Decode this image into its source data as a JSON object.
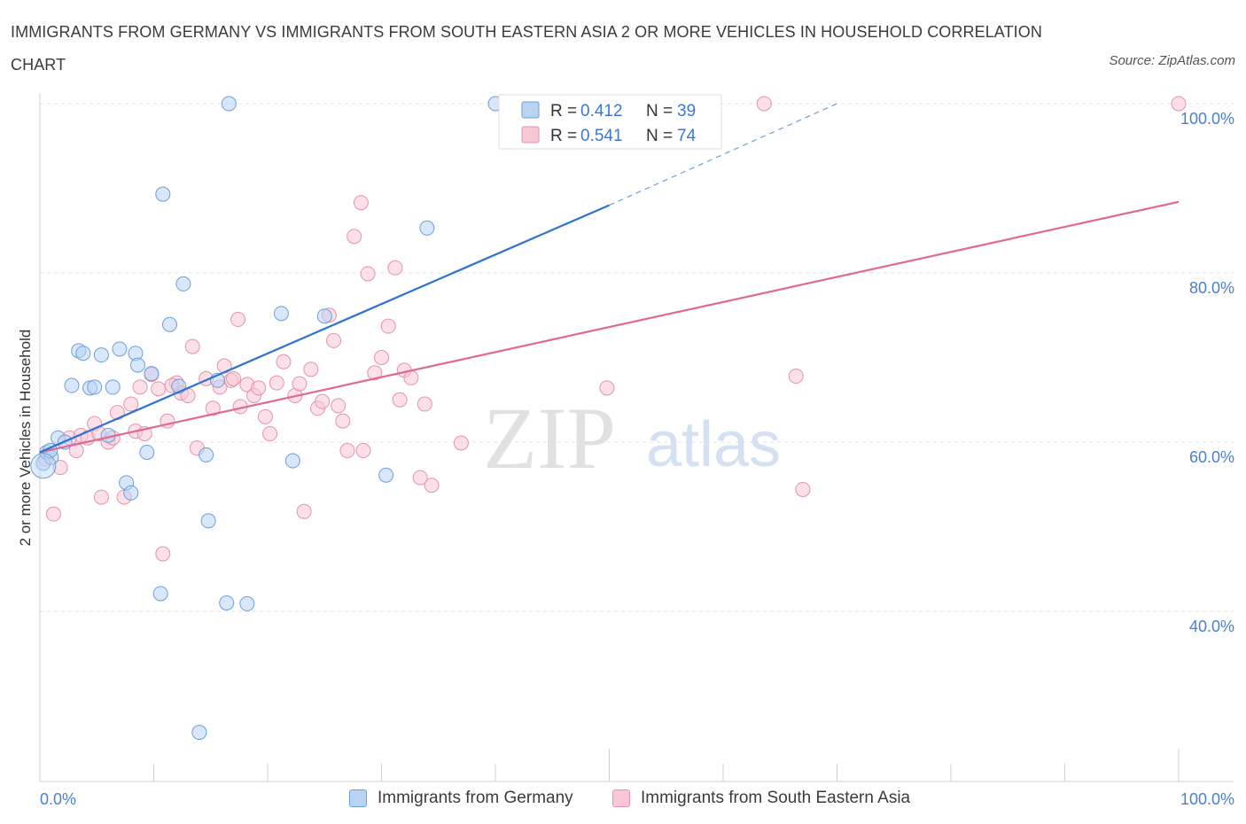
{
  "title": "IMMIGRANTS FROM GERMANY VS IMMIGRANTS FROM SOUTH EASTERN ASIA 2 OR MORE VEHICLES IN HOUSEHOLD CORRELATION CHART",
  "source": "Source: ZipAtlas.com",
  "watermark": {
    "zip": "ZIP",
    "atlas": "atlas"
  },
  "colors": {
    "blue_fill": "#b8d4f5",
    "blue_stroke": "#6c9fd9",
    "blue_line": "#2f73d1",
    "pink_fill": "#f9c6d6",
    "pink_stroke": "#e592ad",
    "pink_line": "#e06895",
    "tick_label": "#4a7fcf",
    "grid": "#e3e3e3"
  },
  "chart_data": {
    "type": "scatter",
    "ylabel": "2 or more Vehicles in Household",
    "xlim": [
      0,
      100
    ],
    "ylim": [
      20,
      100
    ],
    "x_tick_labels": {
      "min": "0.0%",
      "max": "100.0%"
    },
    "y_ticks": [
      {
        "value": 100,
        "label": "100.0%"
      },
      {
        "value": 80,
        "label": "80.0%"
      },
      {
        "value": 60,
        "label": "60.0%"
      },
      {
        "value": 40,
        "label": "40.0%"
      }
    ],
    "grid": true,
    "legend_position": "top-center",
    "series": [
      {
        "name": "Immigrants from Germany",
        "color": "blue",
        "R": "0.412",
        "N": "39",
        "trend": {
          "x0": 0,
          "y0": 58.8,
          "x1": 50,
          "y1": 88,
          "dashed_to": {
            "x": 70,
            "y": 100
          }
        },
        "points": [
          [
            0.3,
            57.5
          ],
          [
            0.6,
            58.8
          ],
          [
            1.0,
            58.2
          ],
          [
            1.6,
            60.5
          ],
          [
            2.2,
            60.0
          ],
          [
            2.8,
            66.7
          ],
          [
            3.4,
            70.8
          ],
          [
            3.8,
            70.5
          ],
          [
            4.4,
            66.4
          ],
          [
            4.8,
            66.5
          ],
          [
            5.4,
            70.3
          ],
          [
            6.4,
            66.5
          ],
          [
            6.0,
            60.8
          ],
          [
            7.0,
            71.0
          ],
          [
            7.6,
            55.2
          ],
          [
            8.0,
            54.0
          ],
          [
            8.4,
            70.5
          ],
          [
            8.6,
            69.1
          ],
          [
            9.4,
            58.8
          ],
          [
            9.8,
            68.1
          ],
          [
            10.6,
            42.1
          ],
          [
            10.8,
            89.3
          ],
          [
            11.4,
            73.9
          ],
          [
            12.6,
            78.7
          ],
          [
            14.0,
            25.7
          ],
          [
            14.6,
            58.5
          ],
          [
            14.8,
            50.7
          ],
          [
            15.6,
            67.3
          ],
          [
            16.4,
            41.0
          ],
          [
            16.6,
            100.0
          ],
          [
            18.2,
            40.9
          ],
          [
            21.2,
            75.2
          ],
          [
            22.2,
            57.8
          ],
          [
            25.0,
            74.9
          ],
          [
            30.4,
            56.1
          ],
          [
            34.0,
            85.3
          ],
          [
            40.0,
            100.0
          ],
          [
            12.2,
            66.6
          ],
          [
            0.9,
            59.0
          ]
        ]
      },
      {
        "name": "Immigrants from South Eastern Asia",
        "color": "pink",
        "R": "0.541",
        "N": "74",
        "trend": {
          "x0": 0,
          "y0": 58.8,
          "x1": 100,
          "y1": 88.4
        },
        "points": [
          [
            0.5,
            58.0
          ],
          [
            1.2,
            51.5
          ],
          [
            1.8,
            57.0
          ],
          [
            2.6,
            60.5
          ],
          [
            3.2,
            59.0
          ],
          [
            3.6,
            60.8
          ],
          [
            4.2,
            60.5
          ],
          [
            4.8,
            62.2
          ],
          [
            5.4,
            53.5
          ],
          [
            6.0,
            60.0
          ],
          [
            6.4,
            60.5
          ],
          [
            6.8,
            63.5
          ],
          [
            7.4,
            53.5
          ],
          [
            8.0,
            64.5
          ],
          [
            8.4,
            61.3
          ],
          [
            8.8,
            66.5
          ],
          [
            9.2,
            61.0
          ],
          [
            9.8,
            68.0
          ],
          [
            10.4,
            66.3
          ],
          [
            10.8,
            46.8
          ],
          [
            11.2,
            62.5
          ],
          [
            12.0,
            67.0
          ],
          [
            12.4,
            65.8
          ],
          [
            13.0,
            65.5
          ],
          [
            13.4,
            71.3
          ],
          [
            13.8,
            59.3
          ],
          [
            14.6,
            67.5
          ],
          [
            15.2,
            64.0
          ],
          [
            15.8,
            66.5
          ],
          [
            16.2,
            69.0
          ],
          [
            16.8,
            67.3
          ],
          [
            17.4,
            74.5
          ],
          [
            17.6,
            64.2
          ],
          [
            18.2,
            66.8
          ],
          [
            18.8,
            65.5
          ],
          [
            19.2,
            66.4
          ],
          [
            19.8,
            63.0
          ],
          [
            20.2,
            61.0
          ],
          [
            20.8,
            67.0
          ],
          [
            21.4,
            69.5
          ],
          [
            22.4,
            65.5
          ],
          [
            22.8,
            66.9
          ],
          [
            23.2,
            51.8
          ],
          [
            23.8,
            68.6
          ],
          [
            24.4,
            64.0
          ],
          [
            24.8,
            64.8
          ],
          [
            25.4,
            75.0
          ],
          [
            25.8,
            72.0
          ],
          [
            26.2,
            64.3
          ],
          [
            26.6,
            62.5
          ],
          [
            27.0,
            59.0
          ],
          [
            27.6,
            84.3
          ],
          [
            28.2,
            88.3
          ],
          [
            28.8,
            79.9
          ],
          [
            29.4,
            68.2
          ],
          [
            30.0,
            70.0
          ],
          [
            30.6,
            73.7
          ],
          [
            31.2,
            80.6
          ],
          [
            31.6,
            65.0
          ],
          [
            32.0,
            68.5
          ],
          [
            32.6,
            67.6
          ],
          [
            33.4,
            55.8
          ],
          [
            33.8,
            64.5
          ],
          [
            34.4,
            54.9
          ],
          [
            37.0,
            59.9
          ],
          [
            49.8,
            66.4
          ],
          [
            63.6,
            100.0
          ],
          [
            66.4,
            67.8
          ],
          [
            67.0,
            54.4
          ],
          [
            100.0,
            100.0
          ],
          [
            5.2,
            61.0
          ],
          [
            11.6,
            66.7
          ],
          [
            17.0,
            67.5
          ],
          [
            28.4,
            59.0
          ]
        ]
      }
    ]
  }
}
